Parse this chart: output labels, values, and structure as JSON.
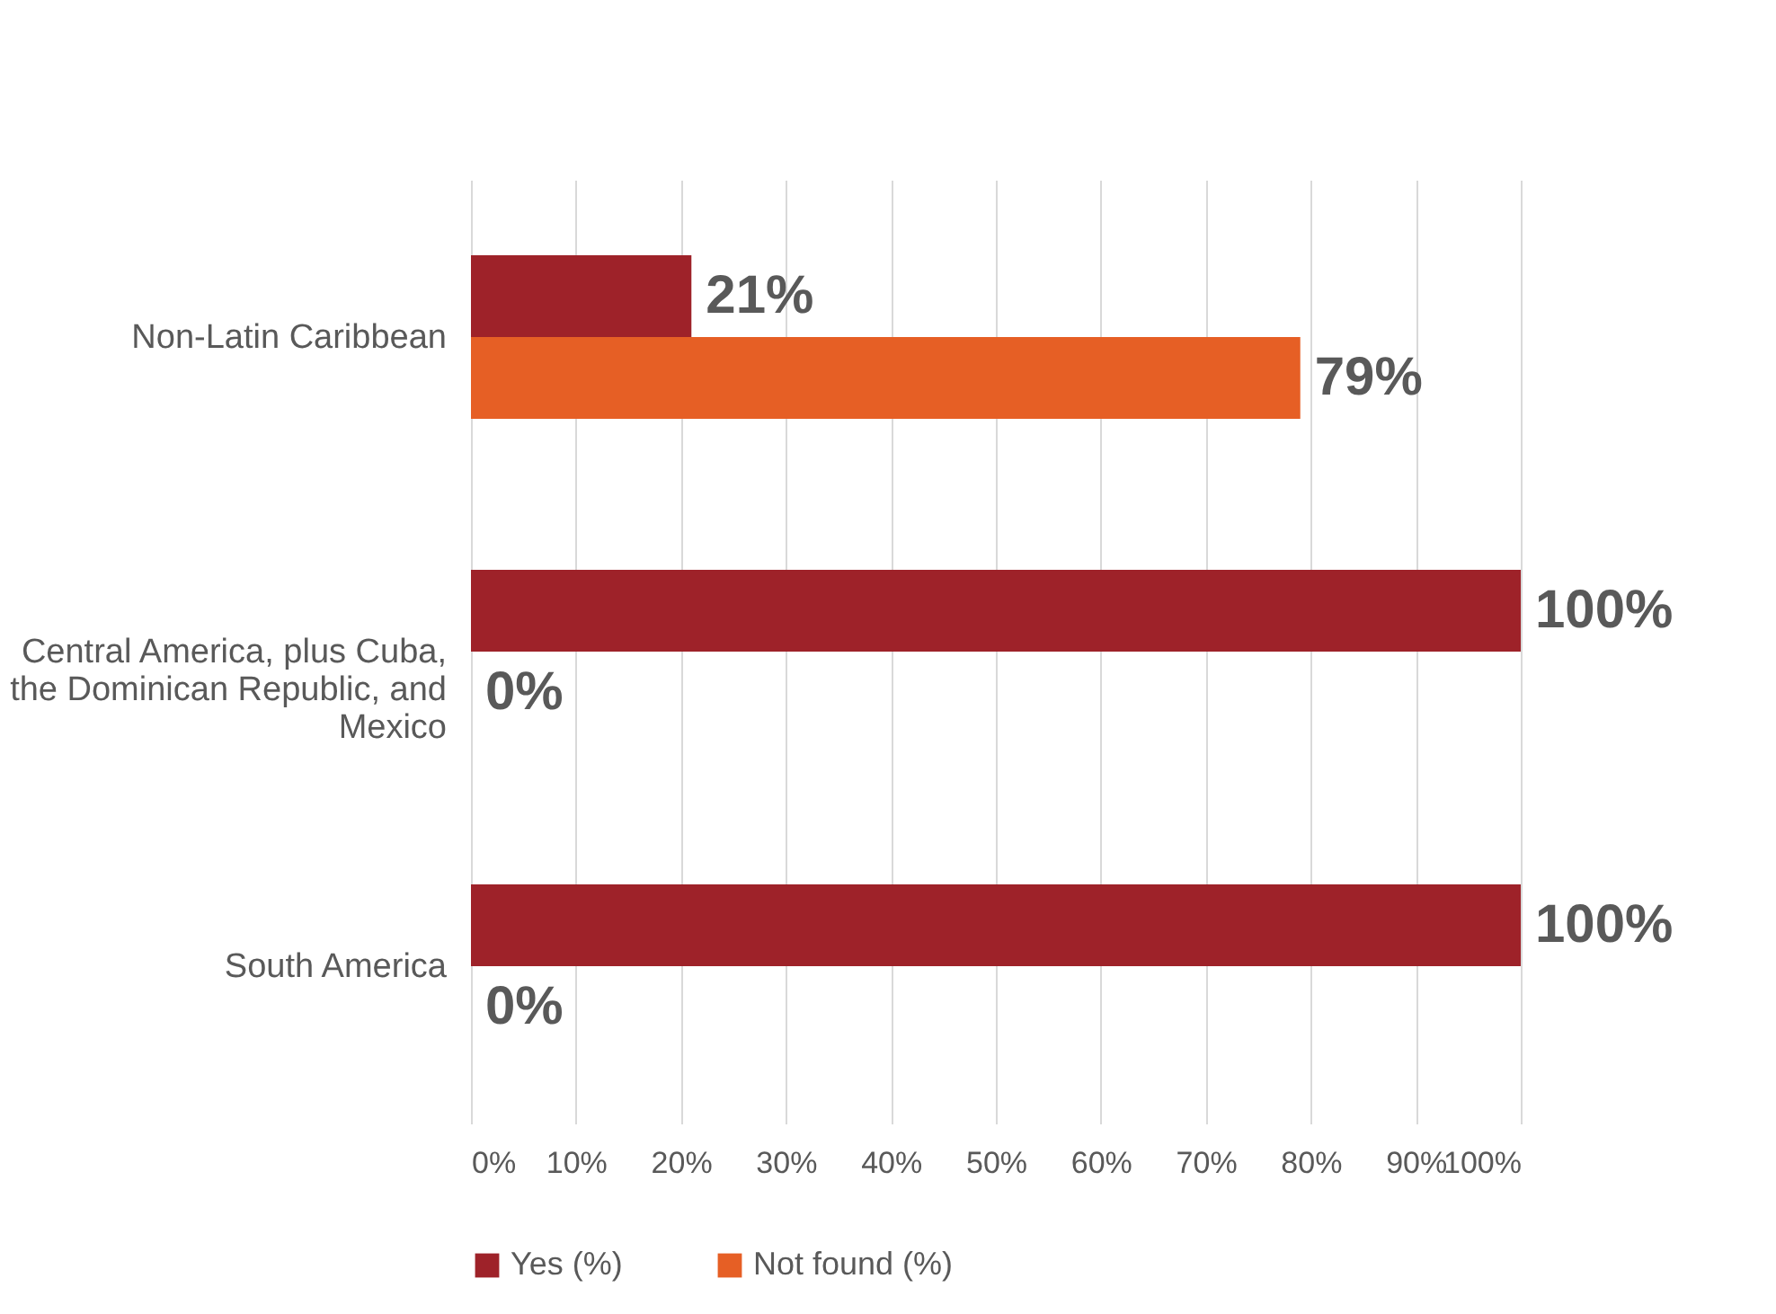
{
  "chart_data": {
    "type": "bar",
    "orientation": "horizontal",
    "categories": [
      "Non-Latin Caribbean",
      "Central America, plus Cuba, the Dominican Republic, and Mexico",
      "South America"
    ],
    "series": [
      {
        "name": "Yes (%)",
        "color": "#9e2229",
        "values": [
          21,
          100,
          100
        ],
        "value_labels": [
          "21%",
          "100%",
          "100%"
        ]
      },
      {
        "name": "Not found (%)",
        "color": "#e65f25",
        "values": [
          79,
          0,
          0
        ],
        "value_labels": [
          "79%",
          "0%",
          "0%"
        ]
      }
    ],
    "xlim": [
      0,
      100
    ],
    "xticks": [
      {
        "value": 0,
        "label": "0%"
      },
      {
        "value": 10,
        "label": "10%"
      },
      {
        "value": 20,
        "label": "20%"
      },
      {
        "value": 30,
        "label": "30%"
      },
      {
        "value": 40,
        "label": "40%"
      },
      {
        "value": 50,
        "label": "50%"
      },
      {
        "value": 60,
        "label": "60%"
      },
      {
        "value": 70,
        "label": "70%"
      },
      {
        "value": 80,
        "label": "80%"
      },
      {
        "value": 90,
        "label": "90%"
      },
      {
        "value": 100,
        "label": "100%"
      }
    ],
    "grid": "x",
    "legend": "bottom"
  }
}
